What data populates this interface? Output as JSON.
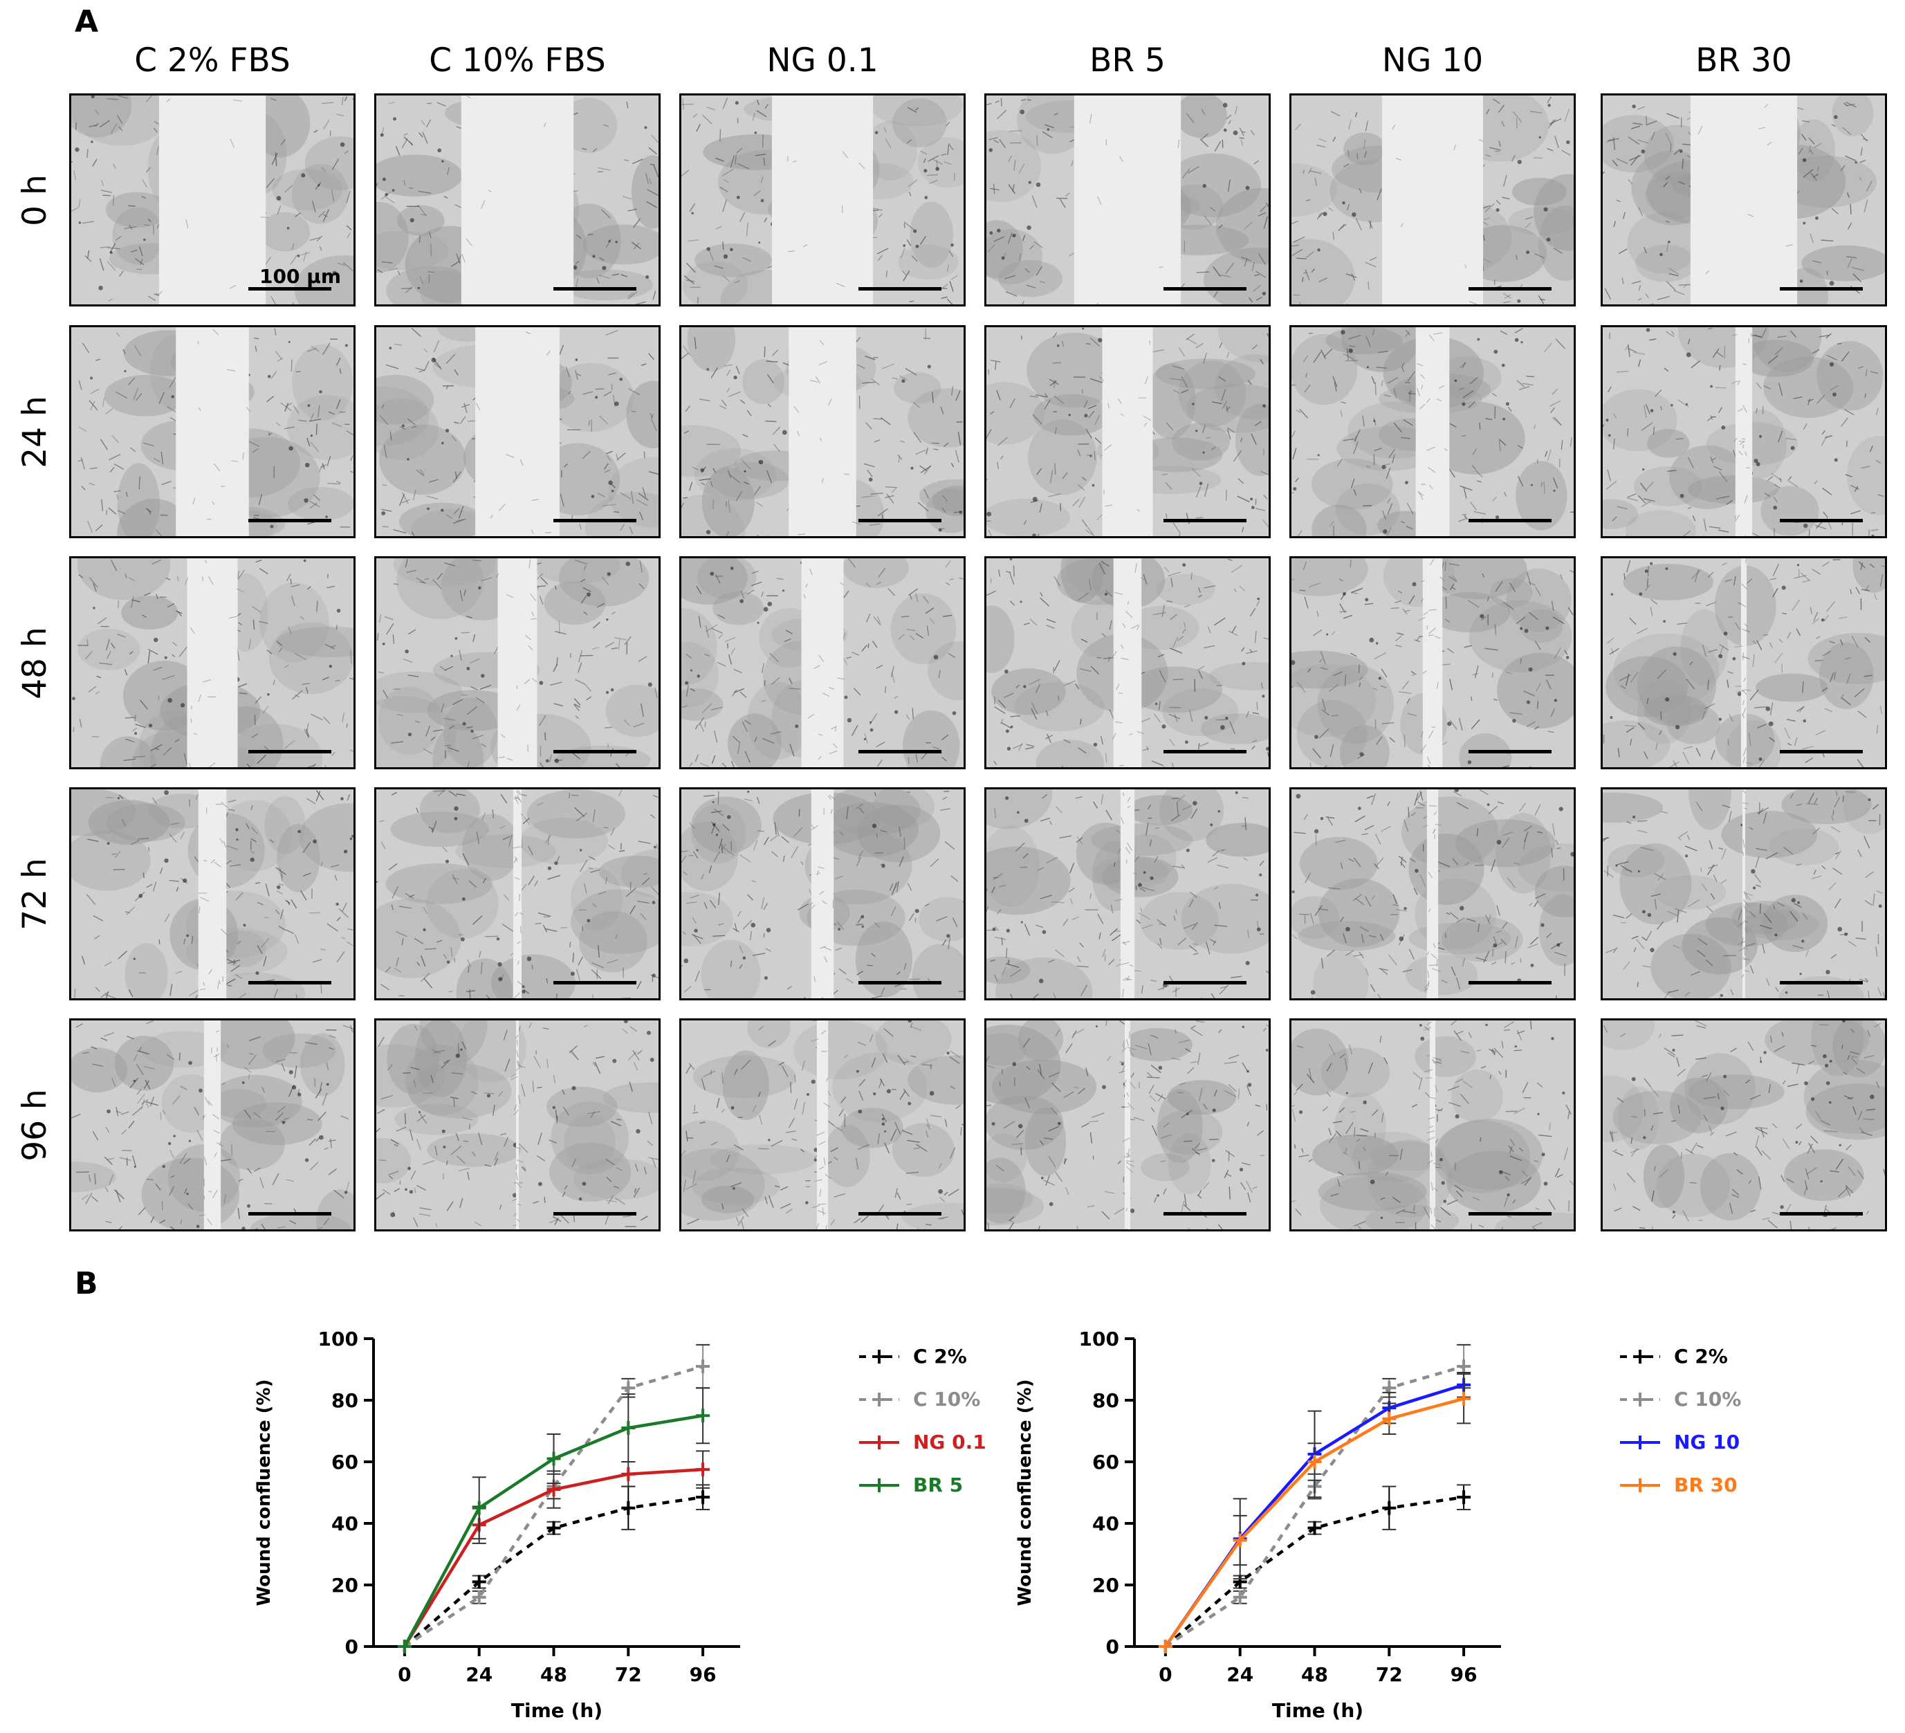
{
  "panel_a": {
    "letter": "A",
    "columns": [
      "C 2% FBS",
      "C 10% FBS",
      "NG 0.1",
      "BR 5",
      "NG 10",
      "BR 30"
    ],
    "rows": [
      "0 h",
      "24 h",
      "48 h",
      "72 h",
      "96 h"
    ],
    "scale_bar_label": "100 µm",
    "wound_gap_fraction": [
      [
        0.38,
        0.4,
        0.36,
        0.38,
        0.36,
        0.38
      ],
      [
        0.26,
        0.3,
        0.24,
        0.18,
        0.12,
        0.06
      ],
      [
        0.18,
        0.14,
        0.15,
        0.1,
        0.07,
        0.02
      ],
      [
        0.1,
        0.03,
        0.08,
        0.05,
        0.04,
        0.01
      ],
      [
        0.06,
        0.01,
        0.04,
        0.02,
        0.02,
        0.0
      ]
    ]
  },
  "panel_b": {
    "letter": "B",
    "chart_data": [
      {
        "type": "line",
        "xlabel": "Time (h)",
        "ylabel": "Wound confluence (%)",
        "x": [
          0,
          24,
          48,
          72,
          96
        ],
        "xlim": [
          -10,
          108
        ],
        "ylim": [
          0,
          100
        ],
        "yticks": [
          0,
          20,
          40,
          60,
          80,
          100
        ],
        "xticks": [
          0,
          24,
          48,
          72,
          96
        ],
        "legend_position": "right",
        "series": [
          {
            "name": "C 2%",
            "color": "#000000",
            "dashed": true,
            "values": [
              0,
              21,
              38.5,
              45,
              48.5
            ],
            "errors": [
              0,
              2,
              2,
              7,
              4
            ]
          },
          {
            "name": "C 10%",
            "color": "#8c8c8c",
            "dashed": true,
            "values": [
              0,
              16,
              52,
              84,
              91
            ],
            "errors": [
              0,
              2,
              4,
              3,
              7
            ]
          },
          {
            "name": "NG 0.1",
            "color": "#cc1f1f",
            "dashed": false,
            "values": [
              0,
              39.5,
              51,
              56,
              57.5
            ],
            "errors": [
              0,
              6,
              6,
              4,
              6
            ]
          },
          {
            "name": "BR 5",
            "color": "#1b7a2a",
            "dashed": false,
            "values": [
              0,
              45,
              61,
              71,
              75
            ],
            "errors": [
              0,
              10,
              8,
              11,
              9
            ]
          }
        ]
      },
      {
        "type": "line",
        "xlabel": "Time (h)",
        "ylabel": "Wound confluence (%)",
        "x": [
          0,
          24,
          48,
          72,
          96
        ],
        "xlim": [
          -10,
          108
        ],
        "ylim": [
          0,
          100
        ],
        "yticks": [
          0,
          20,
          40,
          60,
          80,
          100
        ],
        "xticks": [
          0,
          24,
          48,
          72,
          96
        ],
        "legend_position": "right",
        "series": [
          {
            "name": "C 2%",
            "color": "#000000",
            "dashed": true,
            "values": [
              0,
              21,
              38.5,
              45,
              48.5
            ],
            "errors": [
              0,
              2,
              2,
              7,
              4
            ]
          },
          {
            "name": "C 10%",
            "color": "#8c8c8c",
            "dashed": true,
            "values": [
              0,
              16,
              52,
              84,
              91
            ],
            "errors": [
              0,
              2,
              4,
              3,
              7
            ]
          },
          {
            "name": "NG 10",
            "color": "#1a1aff",
            "dashed": false,
            "values": [
              0,
              35,
              62.5,
              77.5,
              85
            ],
            "errors": [
              0,
              13,
              14,
              5,
              4
            ]
          },
          {
            "name": "BR 30",
            "color": "#ff7a1a",
            "dashed": false,
            "values": [
              0,
              34.5,
              60,
              74,
              80.5
            ],
            "errors": [
              0,
              8,
              6,
              5,
              8
            ]
          }
        ]
      }
    ]
  }
}
